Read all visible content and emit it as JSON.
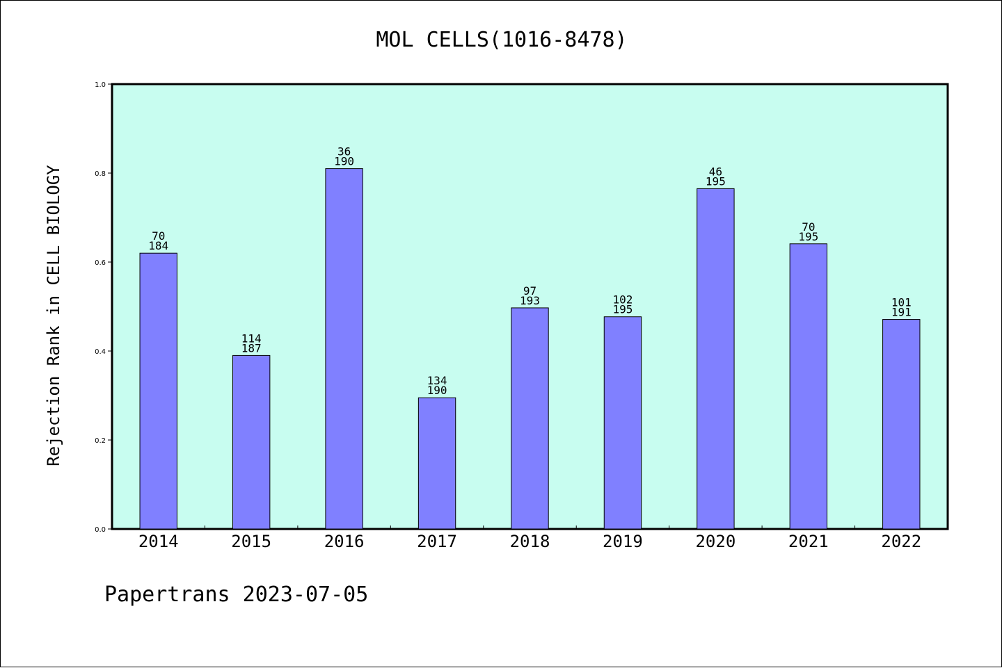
{
  "chart_data": {
    "type": "bar",
    "title": "MOL CELLS(1016-8478)",
    "xlabel": "",
    "ylabel": "Rejection Rank in CELL BIOLOGY",
    "ylim": [
      0,
      1.0
    ],
    "yticks": [
      "0.0",
      "0.2",
      "0.4",
      "0.6",
      "0.8",
      "1.0"
    ],
    "categories": [
      "2014",
      "2015",
      "2016",
      "2017",
      "2018",
      "2019",
      "2020",
      "2021",
      "2022"
    ],
    "values": [
      0.62,
      0.39,
      0.81,
      0.295,
      0.497,
      0.477,
      0.765,
      0.641,
      0.471
    ],
    "annotations": [
      {
        "top": "70",
        "bottom": "184"
      },
      {
        "top": "114",
        "bottom": "187"
      },
      {
        "top": "36",
        "bottom": "190"
      },
      {
        "top": "134",
        "bottom": "190"
      },
      {
        "top": "97",
        "bottom": "193"
      },
      {
        "top": "102",
        "bottom": "195"
      },
      {
        "top": "46",
        "bottom": "195"
      },
      {
        "top": "70",
        "bottom": "195"
      },
      {
        "top": "101",
        "bottom": "191"
      }
    ],
    "colors": {
      "plot_background": "#c8fdf0",
      "bar_fill": "#8080ff",
      "bar_edge": "#000000"
    },
    "grid": false,
    "legend": "none"
  },
  "footer": "Papertrans 2023-07-05"
}
